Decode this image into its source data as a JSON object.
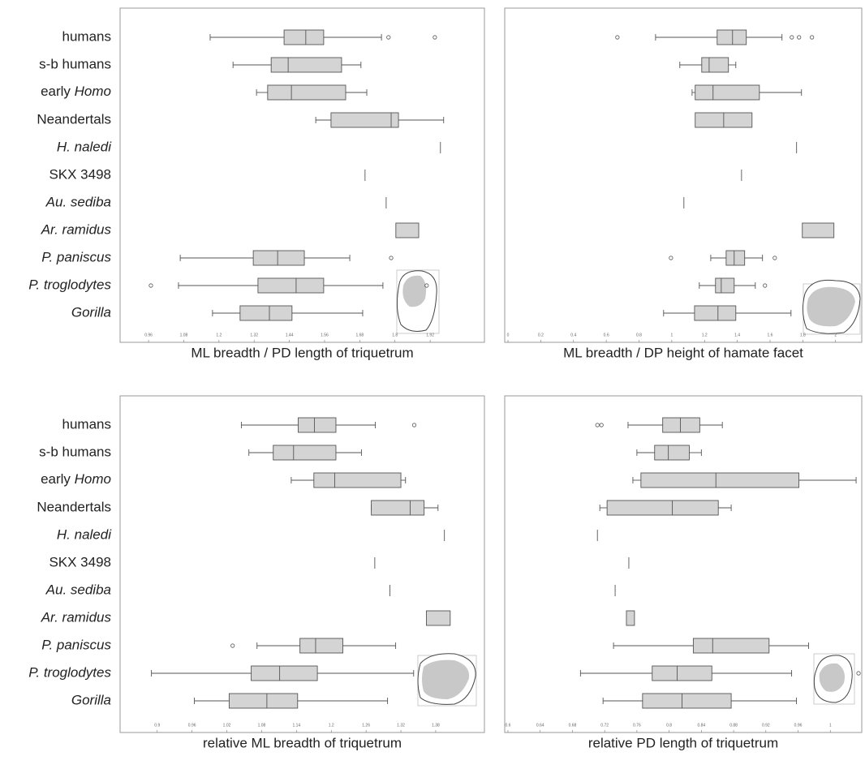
{
  "categories": [
    "humans",
    "s-b humans",
    "early Homo",
    "Neandertals",
    "H. naledi",
    "SKX 3498",
    "Au. sediba",
    "Ar. ramidus",
    "P. paniscus",
    "P. troglodytes",
    "Gorilla"
  ],
  "category_style": [
    "normal",
    "normal",
    "last-word-italic",
    "normal",
    "italic",
    "normal",
    "italic",
    "italic",
    "italic",
    "italic",
    "italic"
  ],
  "chart_data": [
    {
      "type": "box",
      "x_label": "ML breadth / PD length of triquetrum",
      "xlim": [
        0.863,
        2.105
      ],
      "xticks": [
        0.96,
        1.08,
        1.2,
        1.32,
        1.44,
        1.56,
        1.68,
        1.8,
        1.92
      ],
      "color": "#d4d4d4",
      "groups": [
        {
          "whislo": 1.17,
          "q1": 1.422,
          "med": 1.496,
          "q3": 1.557,
          "whishi": 1.754,
          "fliers": [
            1.778,
            1.936
          ]
        },
        {
          "whislo": 1.248,
          "q1": 1.378,
          "med": 1.436,
          "q3": 1.618,
          "whishi": 1.684
        },
        {
          "whislo": 1.328,
          "q1": 1.366,
          "med": 1.447,
          "q3": 1.632,
          "whishi": 1.704
        },
        {
          "whislo": 1.53,
          "q1": 1.582,
          "med": 1.787,
          "q3": 1.812,
          "whishi": 1.966
        },
        {
          "value": 1.955
        },
        {
          "value": 1.698
        },
        {
          "value": 1.77
        },
        {
          "q1": 1.803,
          "q3": 1.881
        },
        {
          "whislo": 1.068,
          "q1": 1.317,
          "med": 1.4,
          "q3": 1.491,
          "whishi": 1.646,
          "fliers": [
            1.787
          ]
        },
        {
          "whislo": 1.062,
          "q1": 1.333,
          "med": 1.463,
          "q3": 1.557,
          "whishi": 1.759,
          "fliers": [
            0.968,
            1.908
          ]
        },
        {
          "whislo": 1.178,
          "q1": 1.272,
          "med": 1.372,
          "q3": 1.449,
          "whishi": 1.69
        }
      ]
    },
    {
      "type": "box",
      "x_label": "ML breadth / DP height of hamate facet",
      "xlim": [
        -0.02,
        2.16
      ],
      "xticks": [
        0,
        0.2,
        0.4,
        0.6,
        0.8,
        1,
        1.2,
        1.4,
        1.6,
        1.8,
        2
      ],
      "color": "#d4d4d4",
      "groups": [
        {
          "whislo": 0.901,
          "q1": 1.277,
          "med": 1.371,
          "q3": 1.455,
          "whishi": 1.673,
          "fliers": [
            0.668,
            1.733,
            1.777,
            1.856
          ]
        },
        {
          "whislo": 1.049,
          "q1": 1.183,
          "med": 1.228,
          "q3": 1.346,
          "whishi": 1.391
        },
        {
          "whislo": 1.124,
          "q1": 1.143,
          "med": 1.252,
          "q3": 1.535,
          "whishi": 1.792
        },
        {
          "q1": 1.143,
          "med": 1.317,
          "q3": 1.49
        },
        {
          "value": 1.762
        },
        {
          "value": 1.426
        },
        {
          "value": 1.074
        },
        {
          "q1": 1.797,
          "q3": 1.99
        },
        {
          "whislo": 1.238,
          "q1": 1.332,
          "med": 1.381,
          "q3": 1.445,
          "whishi": 1.554,
          "fliers": [
            0.995,
            1.629
          ]
        },
        {
          "whislo": 1.168,
          "q1": 1.267,
          "med": 1.302,
          "q3": 1.381,
          "whishi": 1.51,
          "fliers": [
            1.569
          ]
        },
        {
          "whislo": 0.95,
          "q1": 1.139,
          "med": 1.282,
          "q3": 1.391,
          "whishi": 1.728
        }
      ]
    },
    {
      "type": "box",
      "x_label": "relative ML breadth of triquetrum",
      "xlim": [
        0.836,
        1.464
      ],
      "xticks": [
        0.9,
        0.96,
        1.02,
        1.08,
        1.14,
        1.2,
        1.26,
        1.32,
        1.38
      ],
      "color": "#d4d4d4",
      "groups": [
        {
          "whislo": 1.045,
          "q1": 1.143,
          "med": 1.171,
          "q3": 1.208,
          "whishi": 1.276,
          "fliers": [
            1.343
          ]
        },
        {
          "whislo": 1.058,
          "q1": 1.1,
          "med": 1.135,
          "q3": 1.208,
          "whishi": 1.252
        },
        {
          "whislo": 1.131,
          "q1": 1.17,
          "med": 1.206,
          "q3": 1.32,
          "whishi": 1.328
        },
        {
          "whislo": 1.269,
          "q1": 1.269,
          "med": 1.336,
          "q3": 1.36,
          "whishi": 1.384
        },
        {
          "value": 1.395
        },
        {
          "value": 1.275
        },
        {
          "value": 1.301
        },
        {
          "q1": 1.364,
          "q3": 1.405
        },
        {
          "whislo": 1.072,
          "q1": 1.146,
          "med": 1.173,
          "q3": 1.22,
          "whishi": 1.311,
          "fliers": [
            1.03
          ]
        },
        {
          "whislo": 0.89,
          "q1": 1.062,
          "med": 1.111,
          "q3": 1.176,
          "whishi": 1.342
        },
        {
          "whislo": 0.964,
          "q1": 1.024,
          "med": 1.089,
          "q3": 1.142,
          "whishi": 1.297
        }
      ]
    },
    {
      "type": "box",
      "x_label": "relative PD length of triquetrum",
      "xlim": [
        0.596,
        1.039
      ],
      "xticks": [
        0.6,
        0.64,
        0.68,
        0.72,
        0.76,
        0.8,
        0.84,
        0.88,
        0.92,
        0.96,
        1
      ],
      "color": "#d4d4d4",
      "groups": [
        {
          "whislo": 0.749,
          "q1": 0.792,
          "med": 0.814,
          "q3": 0.838,
          "whishi": 0.866,
          "fliers": [
            0.711,
            0.716
          ]
        },
        {
          "whislo": 0.76,
          "q1": 0.782,
          "med": 0.799,
          "q3": 0.825,
          "whishi": 0.84
        },
        {
          "whislo": 0.755,
          "q1": 0.765,
          "med": 0.858,
          "q3": 0.961,
          "whishi": 1.032
        },
        {
          "whislo": 0.714,
          "q1": 0.723,
          "med": 0.804,
          "q3": 0.861,
          "whishi": 0.877
        },
        {
          "value": 0.711
        },
        {
          "value": 0.75
        },
        {
          "value": 0.733
        },
        {
          "q1": 0.747,
          "q3": 0.757
        },
        {
          "whislo": 0.731,
          "q1": 0.83,
          "med": 0.854,
          "q3": 0.924,
          "whishi": 0.973
        },
        {
          "whislo": 0.69,
          "q1": 0.779,
          "med": 0.81,
          "q3": 0.853,
          "whishi": 0.952,
          "fliers": [
            1.035
          ]
        },
        {
          "whislo": 0.718,
          "q1": 0.767,
          "med": 0.816,
          "q3": 0.877,
          "whishi": 0.958
        }
      ]
    }
  ]
}
